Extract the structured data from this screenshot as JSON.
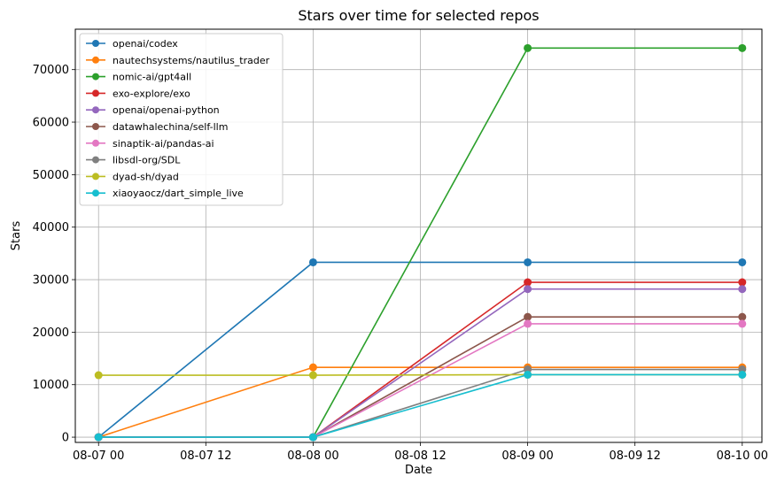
{
  "chart_data": {
    "type": "line",
    "title": "Stars over time for selected repos",
    "xlabel": "Date",
    "ylabel": "Stars",
    "x": [
      "08-07 00",
      "08-08 00",
      "08-09 00",
      "08-10 00"
    ],
    "x_hours": [
      0,
      24,
      48,
      72
    ],
    "xlim_hours": [
      -2.6,
      74.2
    ],
    "xticks": [
      {
        "label": "08-07 00",
        "hours": 0
      },
      {
        "label": "08-07 12",
        "hours": 12
      },
      {
        "label": "08-08 00",
        "hours": 24
      },
      {
        "label": "08-08 12",
        "hours": 36
      },
      {
        "label": "08-09 00",
        "hours": 48
      },
      {
        "label": "08-09 12",
        "hours": 60
      },
      {
        "label": "08-10 00",
        "hours": 72
      }
    ],
    "ylim": [
      -1000,
      77700
    ],
    "yticks": [
      0,
      10000,
      20000,
      30000,
      40000,
      50000,
      60000,
      70000
    ],
    "grid": true,
    "legend_position": "top-left",
    "series": [
      {
        "name": "openai/codex",
        "color": "#1f77b4",
        "values": [
          0,
          33300,
          33300,
          33300
        ]
      },
      {
        "name": "nautechsystems/nautilus_trader",
        "color": "#ff7f0e",
        "values": [
          0,
          13300,
          13300,
          13300
        ]
      },
      {
        "name": "nomic-ai/gpt4all",
        "color": "#2ca02c",
        "values": [
          0,
          0,
          74100,
          74100
        ]
      },
      {
        "name": "exo-explore/exo",
        "color": "#d62728",
        "values": [
          0,
          0,
          29500,
          29500
        ]
      },
      {
        "name": "openai/openai-python",
        "color": "#9467bd",
        "values": [
          0,
          0,
          28200,
          28200
        ]
      },
      {
        "name": "datawhalechina/self-llm",
        "color": "#8c564b",
        "values": [
          0,
          0,
          22900,
          22900
        ]
      },
      {
        "name": "sinaptik-ai/pandas-ai",
        "color": "#e377c2",
        "values": [
          0,
          0,
          21600,
          21600
        ]
      },
      {
        "name": "libsdl-org/SDL",
        "color": "#7f7f7f",
        "values": [
          0,
          0,
          12900,
          12900
        ]
      },
      {
        "name": "dyad-sh/dyad",
        "color": "#bcbd22",
        "values": [
          11800,
          11800,
          11900,
          11900
        ]
      },
      {
        "name": "xiaoyaocz/dart_simple_live",
        "color": "#17becf",
        "values": [
          0,
          0,
          11900,
          11900
        ]
      }
    ]
  }
}
